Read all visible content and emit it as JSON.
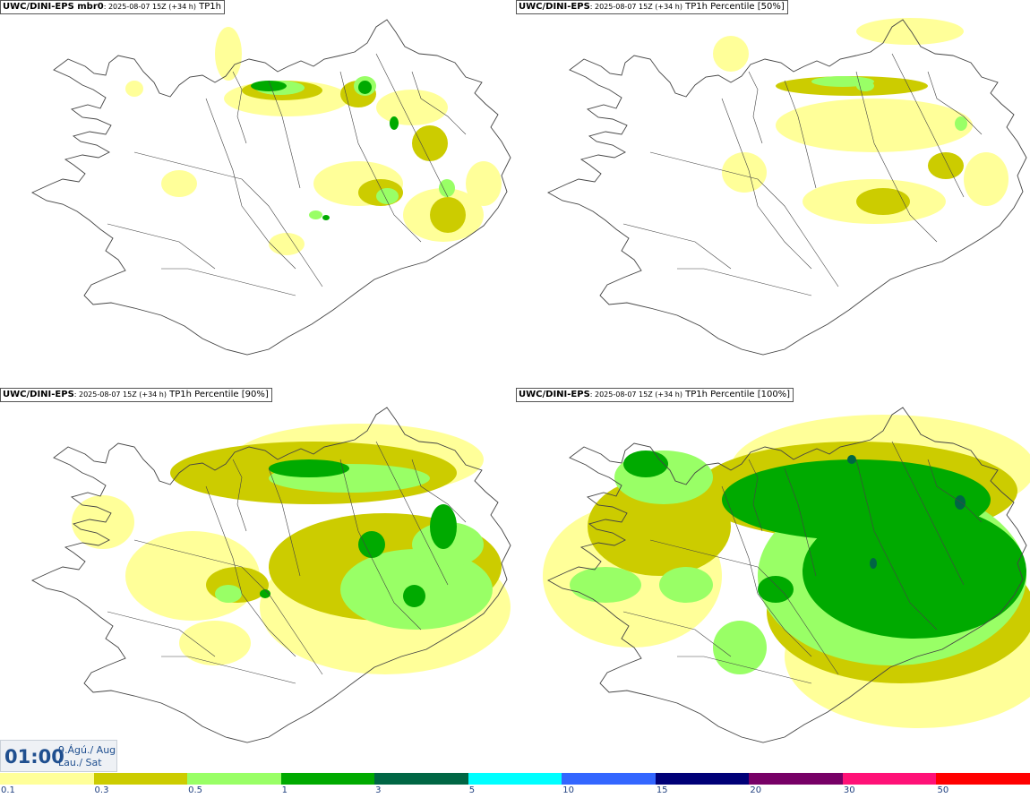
{
  "panels": [
    {
      "model": "UWC/DINI-EPS mbr0",
      "run": ": 2025-08-07 15Z (+34 h)",
      "field": " TP1h"
    },
    {
      "model": "UWC/DINI-EPS",
      "run": ": 2025-08-07 15Z (+34 h)",
      "field": " TP1h Percentile [50%]"
    },
    {
      "model": "UWC/DINI-EPS",
      "run": ": 2025-08-07 15Z (+34 h)",
      "field": " TP1h Percentile [90%]"
    },
    {
      "model": "UWC/DINI-EPS",
      "run": ": 2025-08-07 15Z (+34 h)",
      "field": " TP1h Percentile [100%]"
    }
  ],
  "valid_time": {
    "clock": "01:00",
    "date_line1": "9.Ágú./ Aug",
    "date_line2": "Lau./ Sat"
  },
  "legend": {
    "ticks": [
      "0.1",
      "0.3",
      "0.5",
      "1",
      "3",
      "5",
      "10",
      "15",
      "20",
      "30",
      "50"
    ],
    "colors": [
      "#ffff99",
      "#cccc00",
      "#99ff66",
      "#00aa00",
      "#006644",
      "#00ffff",
      "#3366ff",
      "#000077",
      "#770066",
      "#ff1177",
      "#ff0000"
    ]
  },
  "map": {
    "coastline_color": "#444444",
    "intensity_colors": {
      "light": "#ffff99",
      "moderate": "#cccc00",
      "heavy": "#99ff66",
      "very_heavy": "#00aa00",
      "extreme": "#006644"
    }
  }
}
